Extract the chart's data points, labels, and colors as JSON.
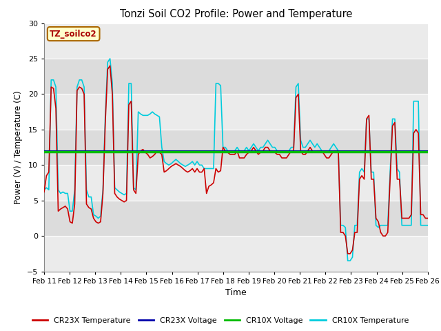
{
  "title": "Tonzi Soil CO2 Profile: Power and Temperature",
  "xlabel": "Time",
  "ylabel": "Power (V) / Temperature (C)",
  "ylim": [
    -5,
    30
  ],
  "yticks": [
    -5,
    0,
    5,
    10,
    15,
    20,
    25,
    30
  ],
  "xtick_labels": [
    "Feb 11",
    "Feb 12",
    "Feb 13",
    "Feb 14",
    "Feb 15",
    "Feb 16",
    "Feb 17",
    "Feb 18",
    "Feb 19",
    "Feb 20",
    "Feb 21",
    "Feb 22",
    "Feb 23",
    "Feb 24",
    "Feb 25",
    "Feb 26"
  ],
  "cr10x_voltage_level": 11.85,
  "cr23x_voltage_level": 11.95,
  "annotation_text": "TZ_soilco2",
  "annotation_bg": "#FFFFCC",
  "annotation_border": "#AA6600",
  "colors": {
    "cr23x_temp": "#CC0000",
    "cr23x_voltage": "#0000AA",
    "cr10x_voltage": "#00BB00",
    "cr10x_temp": "#00CCDD"
  },
  "fig_bg": "#FFFFFF",
  "plot_bg": "#E8E8E8",
  "band_light": "#EBEBEB",
  "band_dark": "#DCDCDC",
  "grid_color": "#FFFFFF",
  "line_widths": {
    "cr23x_temp": 1.2,
    "cr23x_voltage": 1.5,
    "cr10x_voltage": 2.5,
    "cr10x_temp": 1.2
  },
  "cr23x_temp": [
    6.2,
    8.5,
    9.0,
    21.0,
    20.8,
    18.0,
    3.5,
    3.8,
    4.0,
    4.2,
    3.8,
    2.0,
    1.8,
    4.5,
    20.5,
    21.0,
    20.8,
    20.0,
    4.5,
    4.0,
    3.8,
    2.5,
    2.0,
    1.8,
    2.0,
    6.0,
    16.0,
    23.5,
    24.0,
    20.0,
    6.0,
    5.5,
    5.2,
    5.0,
    4.8,
    5.0,
    18.5,
    19.0,
    6.5,
    6.0,
    11.5,
    12.0,
    12.2,
    11.8,
    11.5,
    11.0,
    11.2,
    11.5,
    12.0,
    11.8,
    11.5,
    9.0,
    9.2,
    9.5,
    9.8,
    10.0,
    10.2,
    10.0,
    9.8,
    9.5,
    9.2,
    9.0,
    9.2,
    9.5,
    9.0,
    9.5,
    9.0,
    9.0,
    9.5,
    6.0,
    7.0,
    7.2,
    7.5,
    9.5,
    9.0,
    9.2,
    12.5,
    12.0,
    11.8,
    11.5,
    11.5,
    11.5,
    12.0,
    11.0,
    11.0,
    11.0,
    11.5,
    11.8,
    12.0,
    12.5,
    12.0,
    11.5,
    11.8,
    12.0,
    12.5,
    12.5,
    12.0,
    12.0,
    11.8,
    11.5,
    11.5,
    11.0,
    11.0,
    11.0,
    11.5,
    12.0,
    12.0,
    19.5,
    20.0,
    12.0,
    11.5,
    11.5,
    12.0,
    12.5,
    12.0,
    11.8,
    12.0,
    12.0,
    12.0,
    11.5,
    11.0,
    11.0,
    11.5,
    12.0,
    12.0,
    12.0,
    0.5,
    0.5,
    0.0,
    -2.5,
    -2.5,
    -2.0,
    0.5,
    0.5,
    8.0,
    8.5,
    8.0,
    16.5,
    17.0,
    8.0,
    8.0,
    2.5,
    2.0,
    0.5,
    0.0,
    0.0,
    0.5,
    8.0,
    15.5,
    16.0,
    8.0,
    8.0,
    2.5,
    2.5,
    2.5,
    2.5,
    3.0,
    14.5,
    15.0,
    14.5,
    3.0,
    3.0,
    2.5,
    2.5
  ],
  "cr10x_temp": [
    6.5,
    6.8,
    6.5,
    22.0,
    22.0,
    21.0,
    6.5,
    6.0,
    6.2,
    6.0,
    6.0,
    3.5,
    3.5,
    6.5,
    21.0,
    22.0,
    22.0,
    21.0,
    6.5,
    5.5,
    5.5,
    3.0,
    2.8,
    2.5,
    2.8,
    6.5,
    17.0,
    24.5,
    25.0,
    21.5,
    6.8,
    6.5,
    6.2,
    6.0,
    5.8,
    6.0,
    21.5,
    21.5,
    6.8,
    6.5,
    17.5,
    17.2,
    17.0,
    17.0,
    17.0,
    17.2,
    17.5,
    17.2,
    17.0,
    16.8,
    12.5,
    10.5,
    10.2,
    10.0,
    10.2,
    10.5,
    10.8,
    10.5,
    10.2,
    10.0,
    9.8,
    10.0,
    10.2,
    10.5,
    10.0,
    10.5,
    10.0,
    10.0,
    9.5,
    9.5,
    9.5,
    9.5,
    9.5,
    21.5,
    21.5,
    21.2,
    12.5,
    12.5,
    12.0,
    12.0,
    12.0,
    12.0,
    12.5,
    12.0,
    12.0,
    12.0,
    12.5,
    12.0,
    12.5,
    13.0,
    12.5,
    12.0,
    12.5,
    12.5,
    13.0,
    13.5,
    13.0,
    12.5,
    12.5,
    12.0,
    12.0,
    12.0,
    12.0,
    12.0,
    12.0,
    12.5,
    12.5,
    21.0,
    21.5,
    13.5,
    12.5,
    12.5,
    13.0,
    13.5,
    13.0,
    12.5,
    13.0,
    12.5,
    12.0,
    12.0,
    12.0,
    12.0,
    12.5,
    13.0,
    12.5,
    12.0,
    1.5,
    1.5,
    1.2,
    -3.5,
    -3.5,
    -3.0,
    1.5,
    1.5,
    9.0,
    9.5,
    9.0,
    16.5,
    16.5,
    9.0,
    9.0,
    1.5,
    1.2,
    1.5,
    1.5,
    1.5,
    1.5,
    9.0,
    16.5,
    16.5,
    9.5,
    9.0,
    1.5,
    1.5,
    1.5,
    1.5,
    1.5,
    19.0,
    19.0,
    19.0,
    1.5,
    1.5,
    1.5,
    1.5
  ]
}
